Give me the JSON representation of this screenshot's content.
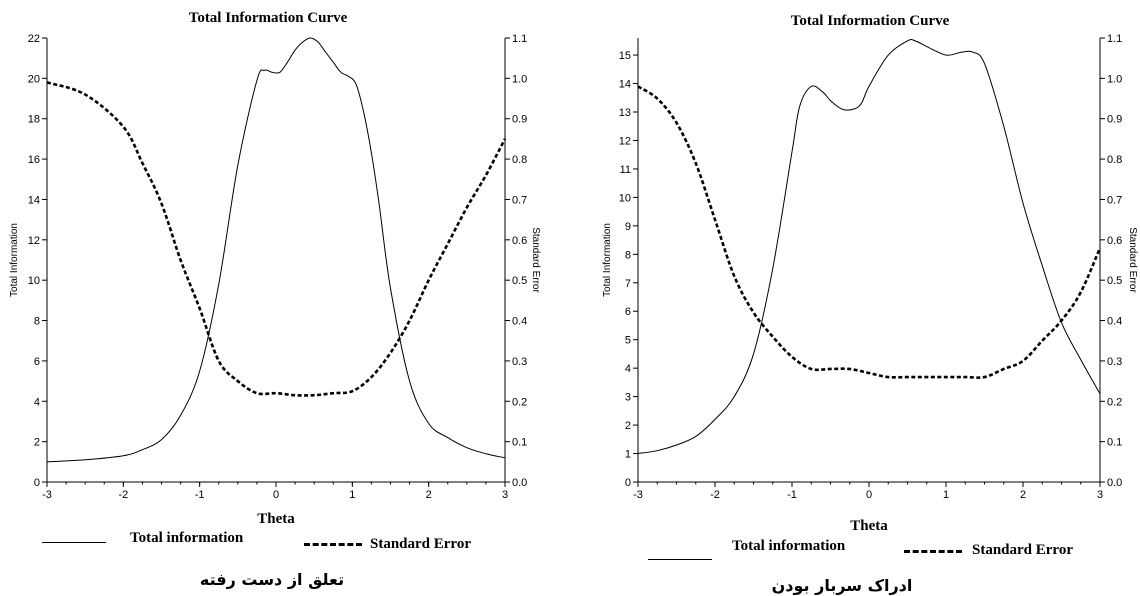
{
  "chart_data": [
    {
      "type": "line",
      "title": "Total Information Curve",
      "xlabel": "Theta",
      "ylabel": "Total Information",
      "y2label": "Standard Error",
      "xlim": [
        -3,
        3
      ],
      "ylim": [
        0,
        22
      ],
      "y2lim": [
        0.0,
        1.1
      ],
      "x_ticks": [
        "-3",
        "-2",
        "-1",
        "0",
        "1",
        "2",
        "3"
      ],
      "y_ticks": [
        "0",
        "2",
        "4",
        "6",
        "8",
        "10",
        "12",
        "14",
        "16",
        "18",
        "20",
        "22"
      ],
      "y2_ticks": [
        "0.0",
        "0.1",
        "0.2",
        "0.3",
        "0.4",
        "0.5",
        "0.6",
        "0.7",
        "0.8",
        "0.9",
        "1.0",
        "1.1"
      ],
      "legend": {
        "info_label": "Total information",
        "se_label": "Standard Error"
      },
      "caption": "تعلق از دست رفته",
      "series": [
        {
          "name": "Total information",
          "axis": "left",
          "style": "solid",
          "x": [
            -3,
            -2.5,
            -2,
            -1.75,
            -1.5,
            -1.25,
            -1,
            -0.75,
            -0.5,
            -0.25,
            -0.15,
            -0.05,
            0.05,
            0.15,
            0.25,
            0.35,
            0.45,
            0.55,
            0.65,
            0.75,
            0.85,
            0.95,
            1.05,
            1.15,
            1.25,
            1.35,
            1.5,
            1.75,
            2,
            2.25,
            2.5,
            2.75,
            3
          ],
          "values": [
            1.0,
            1.1,
            1.3,
            1.6,
            2.1,
            3.3,
            5.5,
            9.8,
            15.7,
            19.9,
            20.4,
            20.3,
            20.3,
            20.8,
            21.4,
            21.8,
            22.0,
            21.8,
            21.3,
            20.8,
            20.3,
            20.1,
            19.7,
            18.3,
            16.3,
            13.8,
            9.6,
            5.0,
            2.9,
            2.2,
            1.7,
            1.4,
            1.2
          ]
        },
        {
          "name": "Standard Error",
          "axis": "right",
          "style": "dashed",
          "x": [
            -3,
            -2.5,
            -2,
            -1.75,
            -1.5,
            -1.25,
            -1,
            -0.75,
            -0.5,
            -0.25,
            0,
            0.25,
            0.5,
            0.75,
            1,
            1.25,
            1.5,
            1.75,
            2,
            2.25,
            2.5,
            2.75,
            3
          ],
          "values": [
            0.99,
            0.96,
            0.88,
            0.79,
            0.69,
            0.55,
            0.43,
            0.3,
            0.25,
            0.22,
            0.22,
            0.215,
            0.215,
            0.22,
            0.225,
            0.26,
            0.32,
            0.4,
            0.5,
            0.59,
            0.68,
            0.76,
            0.85
          ]
        }
      ]
    },
    {
      "type": "line",
      "title": "Total Information Curve",
      "xlabel": "Theta",
      "ylabel": "Total Information",
      "y2label": "Standard Error",
      "xlim": [
        -3,
        3
      ],
      "ylim": [
        0,
        15.6
      ],
      "y2lim": [
        0.0,
        1.1
      ],
      "x_ticks": [
        "-3",
        "-2",
        "-1",
        "0",
        "1",
        "2",
        "3"
      ],
      "y_ticks": [
        "0",
        "1",
        "2",
        "3",
        "4",
        "5",
        "6",
        "7",
        "8",
        "9",
        "10",
        "11",
        "12",
        "13",
        "14",
        "15"
      ],
      "y2_ticks": [
        "0.0",
        "0.1",
        "0.2",
        "0.3",
        "0.4",
        "0.5",
        "0.6",
        "0.7",
        "0.8",
        "0.9",
        "1.0",
        "1.1"
      ],
      "legend": {
        "info_label": "Total information",
        "se_label": "Standard Error"
      },
      "caption": "ادراک سربار بودن",
      "series": [
        {
          "name": "Total information",
          "axis": "left",
          "style": "solid",
          "x": [
            -3,
            -2.75,
            -2.5,
            -2.25,
            -2,
            -1.75,
            -1.5,
            -1.25,
            -1,
            -0.9,
            -0.75,
            -0.6,
            -0.5,
            -0.35,
            -0.2,
            -0.1,
            0,
            0.25,
            0.5,
            0.6,
            0.75,
            1,
            1.2,
            1.35,
            1.5,
            1.75,
            2,
            2.25,
            2.5,
            2.75,
            3
          ],
          "values": [
            1.0,
            1.1,
            1.3,
            1.6,
            2.2,
            3.0,
            4.5,
            7.5,
            11.6,
            13.2,
            13.9,
            13.7,
            13.4,
            13.1,
            13.1,
            13.3,
            13.9,
            15.0,
            15.5,
            15.5,
            15.3,
            15.0,
            15.1,
            15.1,
            14.7,
            12.5,
            9.8,
            7.6,
            5.6,
            4.3,
            3.1
          ]
        },
        {
          "name": "Standard Error",
          "axis": "right",
          "style": "dashed",
          "x": [
            -3,
            -2.75,
            -2.5,
            -2.25,
            -2,
            -1.75,
            -1.5,
            -1.25,
            -1,
            -0.75,
            -0.5,
            -0.25,
            0,
            0.25,
            0.5,
            0.75,
            1,
            1.25,
            1.5,
            1.75,
            2,
            2.25,
            2.5,
            2.75,
            3
          ],
          "values": [
            0.98,
            0.95,
            0.89,
            0.79,
            0.65,
            0.51,
            0.42,
            0.36,
            0.31,
            0.28,
            0.28,
            0.28,
            0.27,
            0.26,
            0.26,
            0.26,
            0.26,
            0.26,
            0.26,
            0.28,
            0.3,
            0.35,
            0.4,
            0.47,
            0.58
          ]
        }
      ]
    }
  ]
}
